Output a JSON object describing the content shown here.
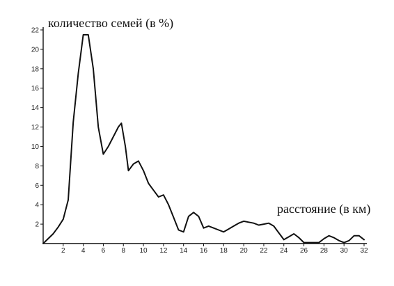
{
  "chart_data": {
    "type": "line",
    "ylabel": "количество семей (в %)",
    "xlabel": "расстояние (в км)",
    "xlim": [
      0,
      32
    ],
    "ylim": [
      0,
      22
    ],
    "x_ticks": [
      2,
      4,
      6,
      8,
      10,
      12,
      14,
      16,
      18,
      20,
      22,
      24,
      26,
      28,
      30,
      32
    ],
    "y_ticks": [
      2,
      4,
      6,
      8,
      10,
      12,
      14,
      16,
      18,
      20,
      22
    ],
    "series": [
      {
        "x": [
          0,
          0.5,
          1,
          1.5,
          2,
          2.5,
          3,
          3.5,
          4,
          4.5,
          5,
          5.5,
          6,
          6.5,
          7,
          7.5,
          7.8,
          8.2,
          8.5,
          9,
          9.5,
          10,
          10.5,
          11,
          11.5,
          12,
          12.5,
          13,
          13.5,
          14,
          14.5,
          15,
          15.5,
          16,
          16.5,
          17,
          17.5,
          18,
          18.5,
          19,
          19.5,
          20,
          20.5,
          21,
          21.5,
          22,
          22.5,
          23,
          23.5,
          24,
          24.5,
          25,
          25.5,
          26,
          26.5,
          27,
          27.5,
          28,
          28.5,
          29,
          29.5,
          30,
          30.5,
          31,
          31.5,
          32
        ],
        "y": [
          0,
          0.5,
          1,
          1.7,
          2.5,
          4.5,
          12.5,
          17.5,
          21.5,
          21.5,
          18,
          12,
          9.2,
          10,
          11,
          12,
          12.4,
          10,
          7.5,
          8.2,
          8.5,
          7.5,
          6.2,
          5.5,
          4.8,
          5,
          4,
          2.7,
          1.4,
          1.2,
          2.8,
          3.2,
          2.8,
          1.6,
          1.8,
          1.6,
          1.4,
          1.2,
          1.5,
          1.8,
          2.1,
          2.3,
          2.2,
          2.1,
          1.9,
          2.0,
          2.1,
          1.8,
          1.1,
          0.4,
          0.7,
          1.0,
          0.6,
          0.1,
          0.1,
          0.1,
          0.1,
          0.5,
          0.8,
          0.6,
          0.3,
          0.1,
          0.3,
          0.8,
          0.8,
          0.4
        ]
      }
    ]
  }
}
